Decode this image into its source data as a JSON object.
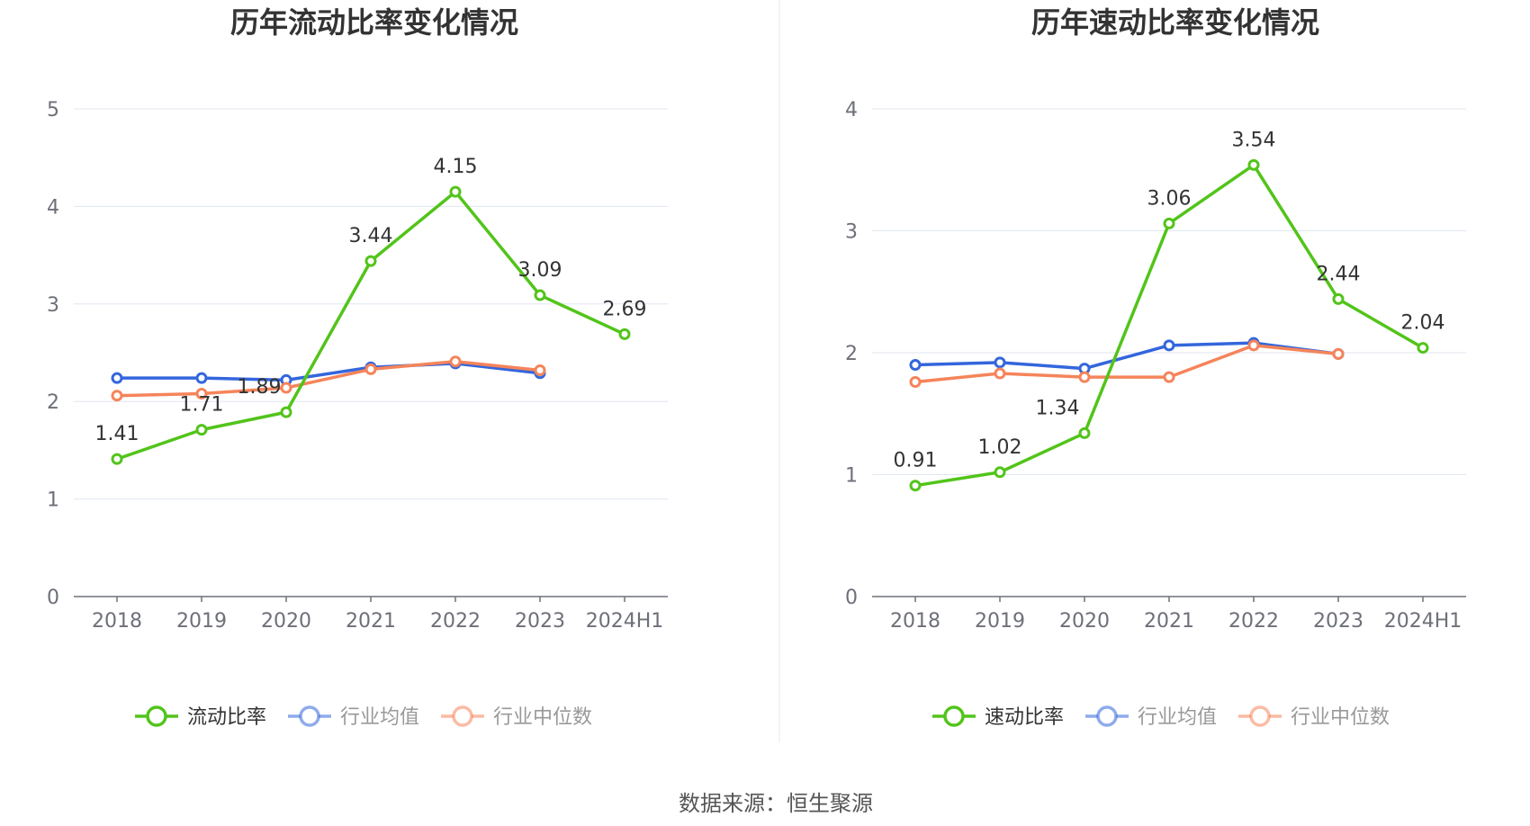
{
  "source": "数据来源：恒生聚源",
  "legend_colors": {
    "active": "#333333",
    "inactive": "#999999"
  },
  "chart_data": [
    {
      "type": "line",
      "title": "历年流动比率变化情况",
      "categories": [
        "2018",
        "2019",
        "2020",
        "2021",
        "2022",
        "2023",
        "2024H1"
      ],
      "ylim": [
        0,
        5
      ],
      "yticks": [
        0,
        1,
        2,
        3,
        4,
        5
      ],
      "grid": true,
      "legend_position": "bottom-center",
      "series": [
        {
          "name": "流动比率",
          "color": "#52c41a",
          "legend_active": true,
          "values": [
            1.41,
            1.71,
            1.89,
            3.44,
            4.15,
            3.09,
            2.69
          ],
          "labels": [
            "1.41",
            "1.71",
            "1.89",
            "3.44",
            "4.15",
            "3.09",
            "2.69"
          ]
        },
        {
          "name": "行业均值",
          "color": "#3366dd",
          "legend_active": false,
          "values": [
            2.24,
            2.24,
            2.22,
            2.35,
            2.39,
            2.29,
            null
          ]
        },
        {
          "name": "行业中位数",
          "color": "#f5845a",
          "legend_active": false,
          "values": [
            2.06,
            2.08,
            2.14,
            2.33,
            2.41,
            2.32,
            null
          ]
        }
      ]
    },
    {
      "type": "line",
      "title": "历年速动比率变化情况",
      "categories": [
        "2018",
        "2019",
        "2020",
        "2021",
        "2022",
        "2023",
        "2024H1"
      ],
      "ylim": [
        0,
        4
      ],
      "yticks": [
        0,
        1,
        2,
        3,
        4
      ],
      "grid": true,
      "legend_position": "bottom-center",
      "series": [
        {
          "name": "速动比率",
          "color": "#52c41a",
          "legend_active": true,
          "values": [
            0.91,
            1.02,
            1.34,
            3.06,
            3.54,
            2.44,
            2.04
          ],
          "labels": [
            "0.91",
            "1.02",
            "1.34",
            "3.06",
            "3.54",
            "2.44",
            "2.04"
          ]
        },
        {
          "name": "行业均值",
          "color": "#3366dd",
          "legend_active": false,
          "values": [
            1.9,
            1.92,
            1.87,
            2.06,
            2.08,
            1.99,
            null
          ]
        },
        {
          "name": "行业中位数",
          "color": "#f5845a",
          "legend_active": false,
          "values": [
            1.76,
            1.83,
            1.8,
            1.8,
            2.06,
            1.99,
            null
          ]
        }
      ]
    }
  ]
}
